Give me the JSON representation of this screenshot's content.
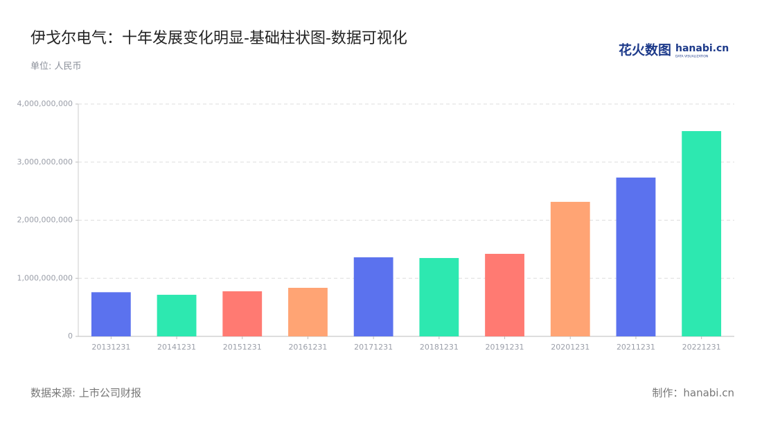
{
  "chart_data": {
    "type": "bar",
    "title": "伊戈尔电气：十年发展变化明显-基础柱状图-数据可视化",
    "subtitle": "单位: 人民币",
    "source": "数据来源: 上市公司财报",
    "credit": "制作：hanabi.cn",
    "logo": {
      "name": "花火数图",
      "brand": "hanabi.cn",
      "tagline": "DATA VISUALIZATION"
    },
    "categories": [
      "20131231",
      "20141231",
      "20151231",
      "20161231",
      "20171231",
      "20181231",
      "20191231",
      "20201231",
      "20211231",
      "20221231"
    ],
    "values": [
      760000000,
      716000000,
      776000000,
      836000000,
      1361000000,
      1349000000,
      1421000000,
      2316000000,
      2734000000,
      3534000000
    ],
    "colors": [
      "#5b72ee",
      "#2de8b0",
      "#ff7a72",
      "#ffa474",
      "#5b72ee",
      "#2de8b0",
      "#ff7a72",
      "#ffa474",
      "#5b72ee",
      "#2de8b0"
    ],
    "ylim": [
      0,
      4000000000
    ],
    "yticks": [
      0,
      {
        "value": 1000000000,
        "label": "1,000,000,000"
      },
      {
        "value": 2000000000,
        "label": "2,000,000,000"
      },
      {
        "value": 3000000000,
        "label": "3,000,000,000"
      },
      {
        "value": 4000000000,
        "label": "4,000,000,000"
      }
    ],
    "grid": true
  }
}
